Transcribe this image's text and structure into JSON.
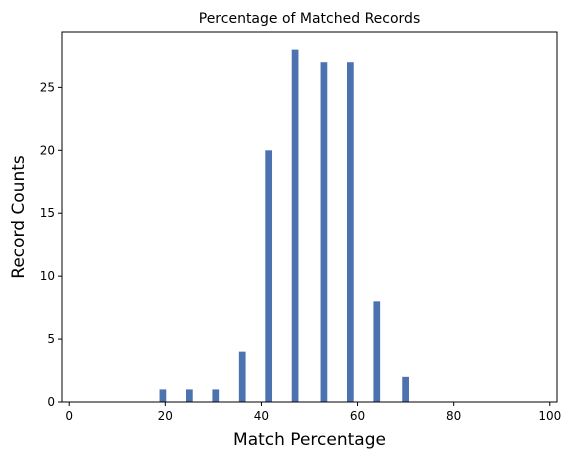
{
  "chart_data": {
    "type": "bar",
    "title": "Percentage of Matched Records",
    "xlabel": "Match Percentage",
    "ylabel": "Record Counts",
    "x": [
      19.5,
      25,
      30.5,
      36,
      41.5,
      47,
      53,
      58.5,
      64,
      70
    ],
    "values": [
      1,
      1,
      1,
      4,
      20,
      28,
      27,
      27,
      8,
      2
    ],
    "bar_width": 1.4,
    "xlim": [
      -1.5,
      101.5
    ],
    "ylim": [
      0,
      29.4
    ],
    "xticks": [
      0,
      20,
      40,
      60,
      80,
      100
    ],
    "yticks": [
      0,
      5,
      10,
      15,
      20,
      25
    ],
    "grid": false,
    "bar_color": "#4c72b0"
  }
}
